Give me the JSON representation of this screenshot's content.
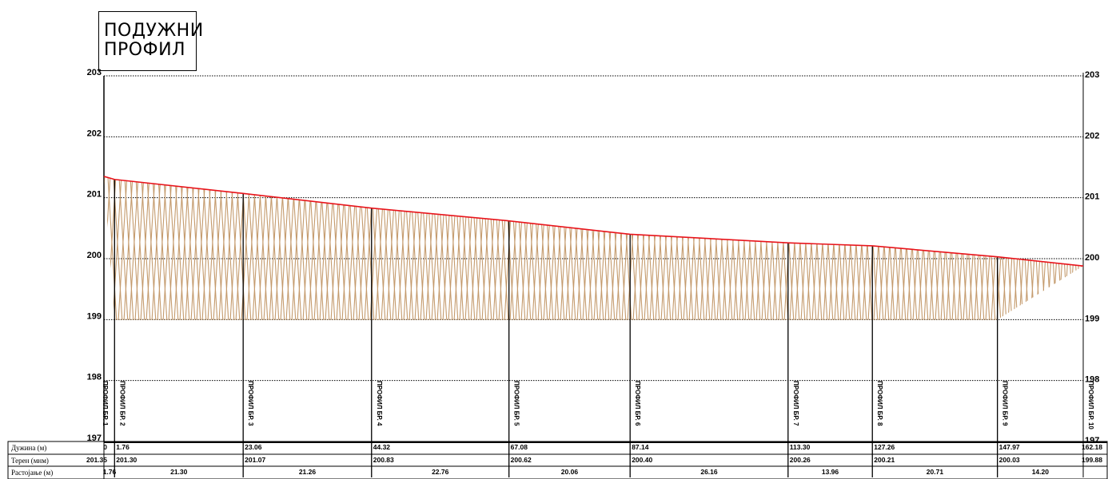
{
  "title": {
    "line1": "ПОДУЖНИ",
    "line2": "ПРОФИЛ"
  },
  "colors": {
    "terrain": "#e8141b",
    "hatch": "#c49a6c",
    "grid": "#000000",
    "text": "#000000"
  },
  "chart_data": {
    "type": "area",
    "ylim": [
      197,
      203
    ],
    "yticks": [
      "197",
      "198",
      "199",
      "200",
      "201",
      "202",
      "203"
    ],
    "datum_elevation": 199,
    "profiles": [
      {
        "name": "ПРОФИЛ БР. 1",
        "station": 0,
        "terrain": 201.35
      },
      {
        "name": "ПРОФИЛ БР. 2",
        "station": 1.76,
        "terrain": 201.3
      },
      {
        "name": "ПРОФИЛ БР. 3",
        "station": 23.06,
        "terrain": 201.07
      },
      {
        "name": "ПРОФИЛ БР. 4",
        "station": 44.32,
        "terrain": 200.83
      },
      {
        "name": "ПРОФИЛ БР. 5",
        "station": 67.08,
        "terrain": 200.62
      },
      {
        "name": "ПРОФИЛ БР. 6",
        "station": 87.14,
        "terrain": 200.4
      },
      {
        "name": "ПРОФИЛ БР. 7",
        "station": 113.3,
        "terrain": 200.26
      },
      {
        "name": "ПРОФИЛ БР. 8",
        "station": 127.26,
        "terrain": 200.21
      },
      {
        "name": "ПРОФИЛ БР. 9",
        "station": 147.97,
        "terrain": 200.03
      },
      {
        "name": "ПРОФИЛ БР. 10",
        "station": 162.18,
        "terrain": 199.88
      }
    ]
  },
  "table": {
    "rows": [
      {
        "label": "Дужина (м)",
        "values": [
          "0",
          "1.76",
          "23.06",
          "44.32",
          "67.08",
          "87.14",
          "113.30",
          "127.26",
          "147.97",
          "162.18"
        ]
      },
      {
        "label": "Терен (мнм)",
        "values": [
          "201.35",
          "201.30",
          "201.07",
          "200.83",
          "200.62",
          "200.40",
          "200.26",
          "200.21",
          "200.03",
          "199.88"
        ]
      },
      {
        "label": "Растојање (м)",
        "values": [
          "1.76",
          "21.30",
          "21.26",
          "22.76",
          "20.06",
          "26.16",
          "13.96",
          "20.71",
          "14.20"
        ]
      }
    ]
  }
}
